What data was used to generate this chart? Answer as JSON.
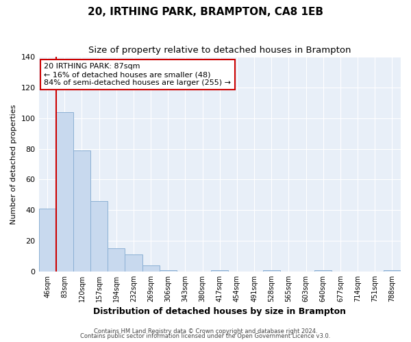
{
  "title": "20, IRTHING PARK, BRAMPTON, CA8 1EB",
  "subtitle": "Size of property relative to detached houses in Brampton",
  "xlabel": "Distribution of detached houses by size in Brampton",
  "ylabel": "Number of detached properties",
  "bar_labels": [
    "46sqm",
    "83sqm",
    "120sqm",
    "157sqm",
    "194sqm",
    "232sqm",
    "269sqm",
    "306sqm",
    "343sqm",
    "380sqm",
    "417sqm",
    "454sqm",
    "491sqm",
    "528sqm",
    "565sqm",
    "603sqm",
    "640sqm",
    "677sqm",
    "714sqm",
    "751sqm",
    "788sqm"
  ],
  "bar_heights": [
    41,
    104,
    79,
    46,
    15,
    11,
    4,
    1,
    0,
    0,
    1,
    0,
    0,
    1,
    0,
    0,
    1,
    0,
    0,
    0,
    1
  ],
  "bar_color": "#c8d9ee",
  "bar_edge_color": "#8bb0d4",
  "highlight_line_color": "#cc0000",
  "annotation_text": "20 IRTHING PARK: 87sqm\n← 16% of detached houses are smaller (48)\n84% of semi-detached houses are larger (255) →",
  "annotation_box_color": "#ffffff",
  "annotation_box_edge": "#cc0000",
  "ylim": [
    0,
    140
  ],
  "yticks": [
    0,
    20,
    40,
    60,
    80,
    100,
    120,
    140
  ],
  "footer1": "Contains HM Land Registry data © Crown copyright and database right 2024.",
  "footer2": "Contains public sector information licensed under the Open Government Licence v3.0.",
  "background_color": "#ffffff",
  "plot_bg_color": "#e8eff8",
  "grid_color": "#ffffff",
  "title_fontsize": 11,
  "subtitle_fontsize": 9.5,
  "xlabel_fontsize": 9,
  "ylabel_fontsize": 8
}
